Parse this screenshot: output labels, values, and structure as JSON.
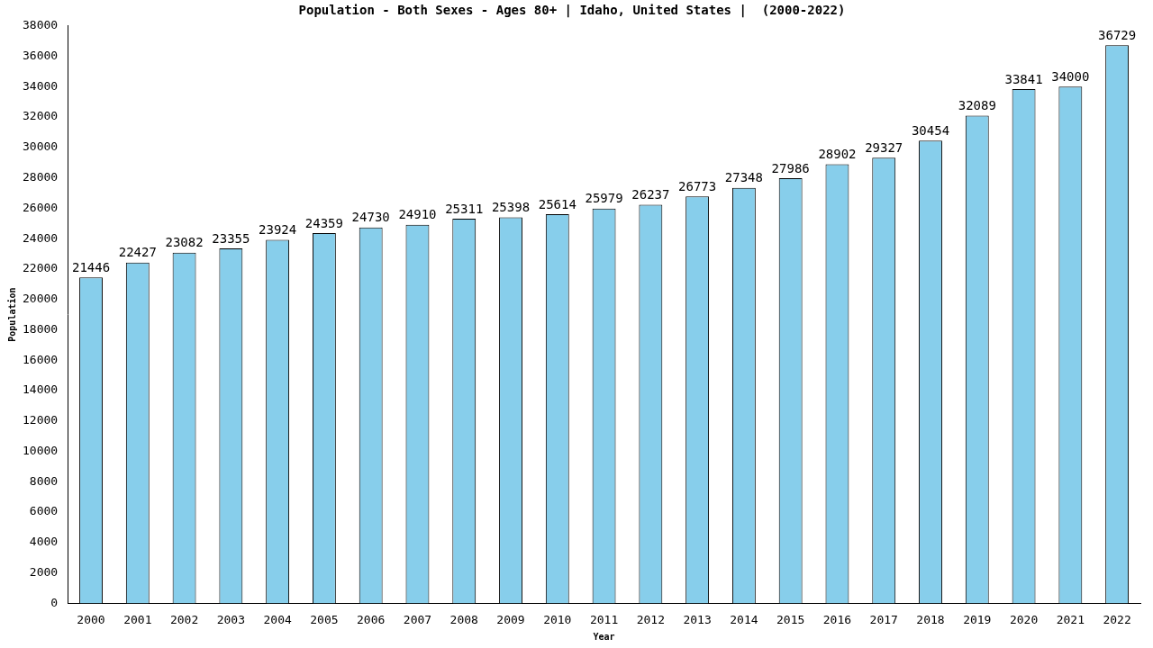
{
  "chart_data": {
    "type": "bar",
    "title": "Population - Both Sexes - Ages 80+ | Idaho, United States |  (2000-2022)",
    "x_label": "Year",
    "y_label": "Population",
    "categories": [
      "2000",
      "2001",
      "2002",
      "2003",
      "2004",
      "2005",
      "2006",
      "2007",
      "2008",
      "2009",
      "2010",
      "2011",
      "2012",
      "2013",
      "2014",
      "2015",
      "2016",
      "2017",
      "2018",
      "2019",
      "2020",
      "2021",
      "2022"
    ],
    "values": [
      21446,
      22427,
      23082,
      23355,
      23924,
      24359,
      24730,
      24910,
      25311,
      25398,
      25614,
      25979,
      26237,
      26773,
      27348,
      27986,
      28902,
      29327,
      30454,
      32089,
      33841,
      34000,
      36729
    ],
    "color": "#87ceeb",
    "ylim": [
      0,
      38000
    ],
    "yticks": [
      0,
      2000,
      4000,
      6000,
      8000,
      10000,
      12000,
      14000,
      16000,
      18000,
      20000,
      22000,
      24000,
      26000,
      28000,
      30000,
      32000,
      34000,
      36000,
      38000
    ],
    "grid": false,
    "data_labels": true
  }
}
